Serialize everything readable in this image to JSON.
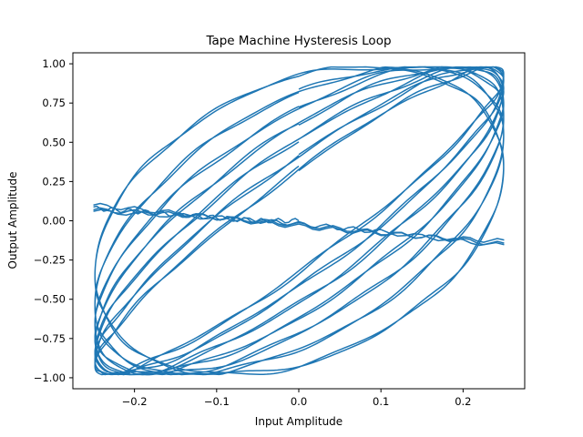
{
  "chart_data": {
    "type": "line",
    "title": "Tape Machine Hysteresis Loop",
    "xlabel": "Input Amplitude",
    "ylabel": "Output Amplitude",
    "xlim": [
      -0.275,
      0.275
    ],
    "ylim": [
      -1.07,
      1.07
    ],
    "x_ticks": [
      -0.2,
      -0.1,
      0.0,
      0.1,
      0.2
    ],
    "x_tick_labels": [
      "−0.2",
      "−0.1",
      "0.0",
      "0.1",
      "0.2"
    ],
    "y_ticks": [
      -1.0,
      -0.75,
      -0.5,
      -0.25,
      0.0,
      0.25,
      0.5,
      0.75,
      1.0
    ],
    "y_tick_labels": [
      "−1.00",
      "−0.75",
      "−0.50",
      "−0.25",
      "0.00",
      "0.25",
      "0.50",
      "0.75",
      "1.00"
    ],
    "grid": false,
    "legend": "none",
    "series": [
      {
        "color": "#1f77b4",
        "input_amplitude": 0.25,
        "output_range": [
          -0.98,
          0.98
        ],
        "loops": [
          {
            "half_width": 0.92,
            "cycles": 2
          },
          {
            "half_width": 0.82,
            "cycles": 2
          },
          {
            "half_width": 0.72,
            "cycles": 2
          },
          {
            "half_width": 0.62,
            "cycles": 2
          },
          {
            "half_width": 0.52,
            "cycles": 2
          },
          {
            "half_width": 0.42,
            "cycles": 2
          },
          {
            "half_width": 0.33,
            "cycles": 2
          }
        ],
        "transients": [
          {
            "x": [
              0.0,
              -0.05,
              -0.1,
              -0.15,
              -0.2,
              -0.25
            ],
            "y": [
              0.0,
              0.0,
              0.02,
              0.04,
              0.06,
              0.08
            ]
          },
          {
            "x": [
              -0.25,
              -0.15,
              -0.05,
              0.05,
              0.15,
              0.25
            ],
            "y": [
              0.07,
              0.04,
              0.0,
              -0.05,
              -0.1,
              -0.15
            ]
          },
          {
            "x": [
              -0.25,
              -0.15,
              -0.05,
              0.05,
              0.15,
              0.25
            ],
            "y": [
              0.1,
              0.05,
              -0.01,
              -0.06,
              -0.1,
              -0.13
            ]
          },
          {
            "x": [
              -0.25,
              -0.1,
              0.0,
              0.1,
              0.25
            ],
            "y": [
              0.06,
              0.02,
              -0.02,
              -0.07,
              -0.16
            ]
          }
        ]
      }
    ]
  }
}
